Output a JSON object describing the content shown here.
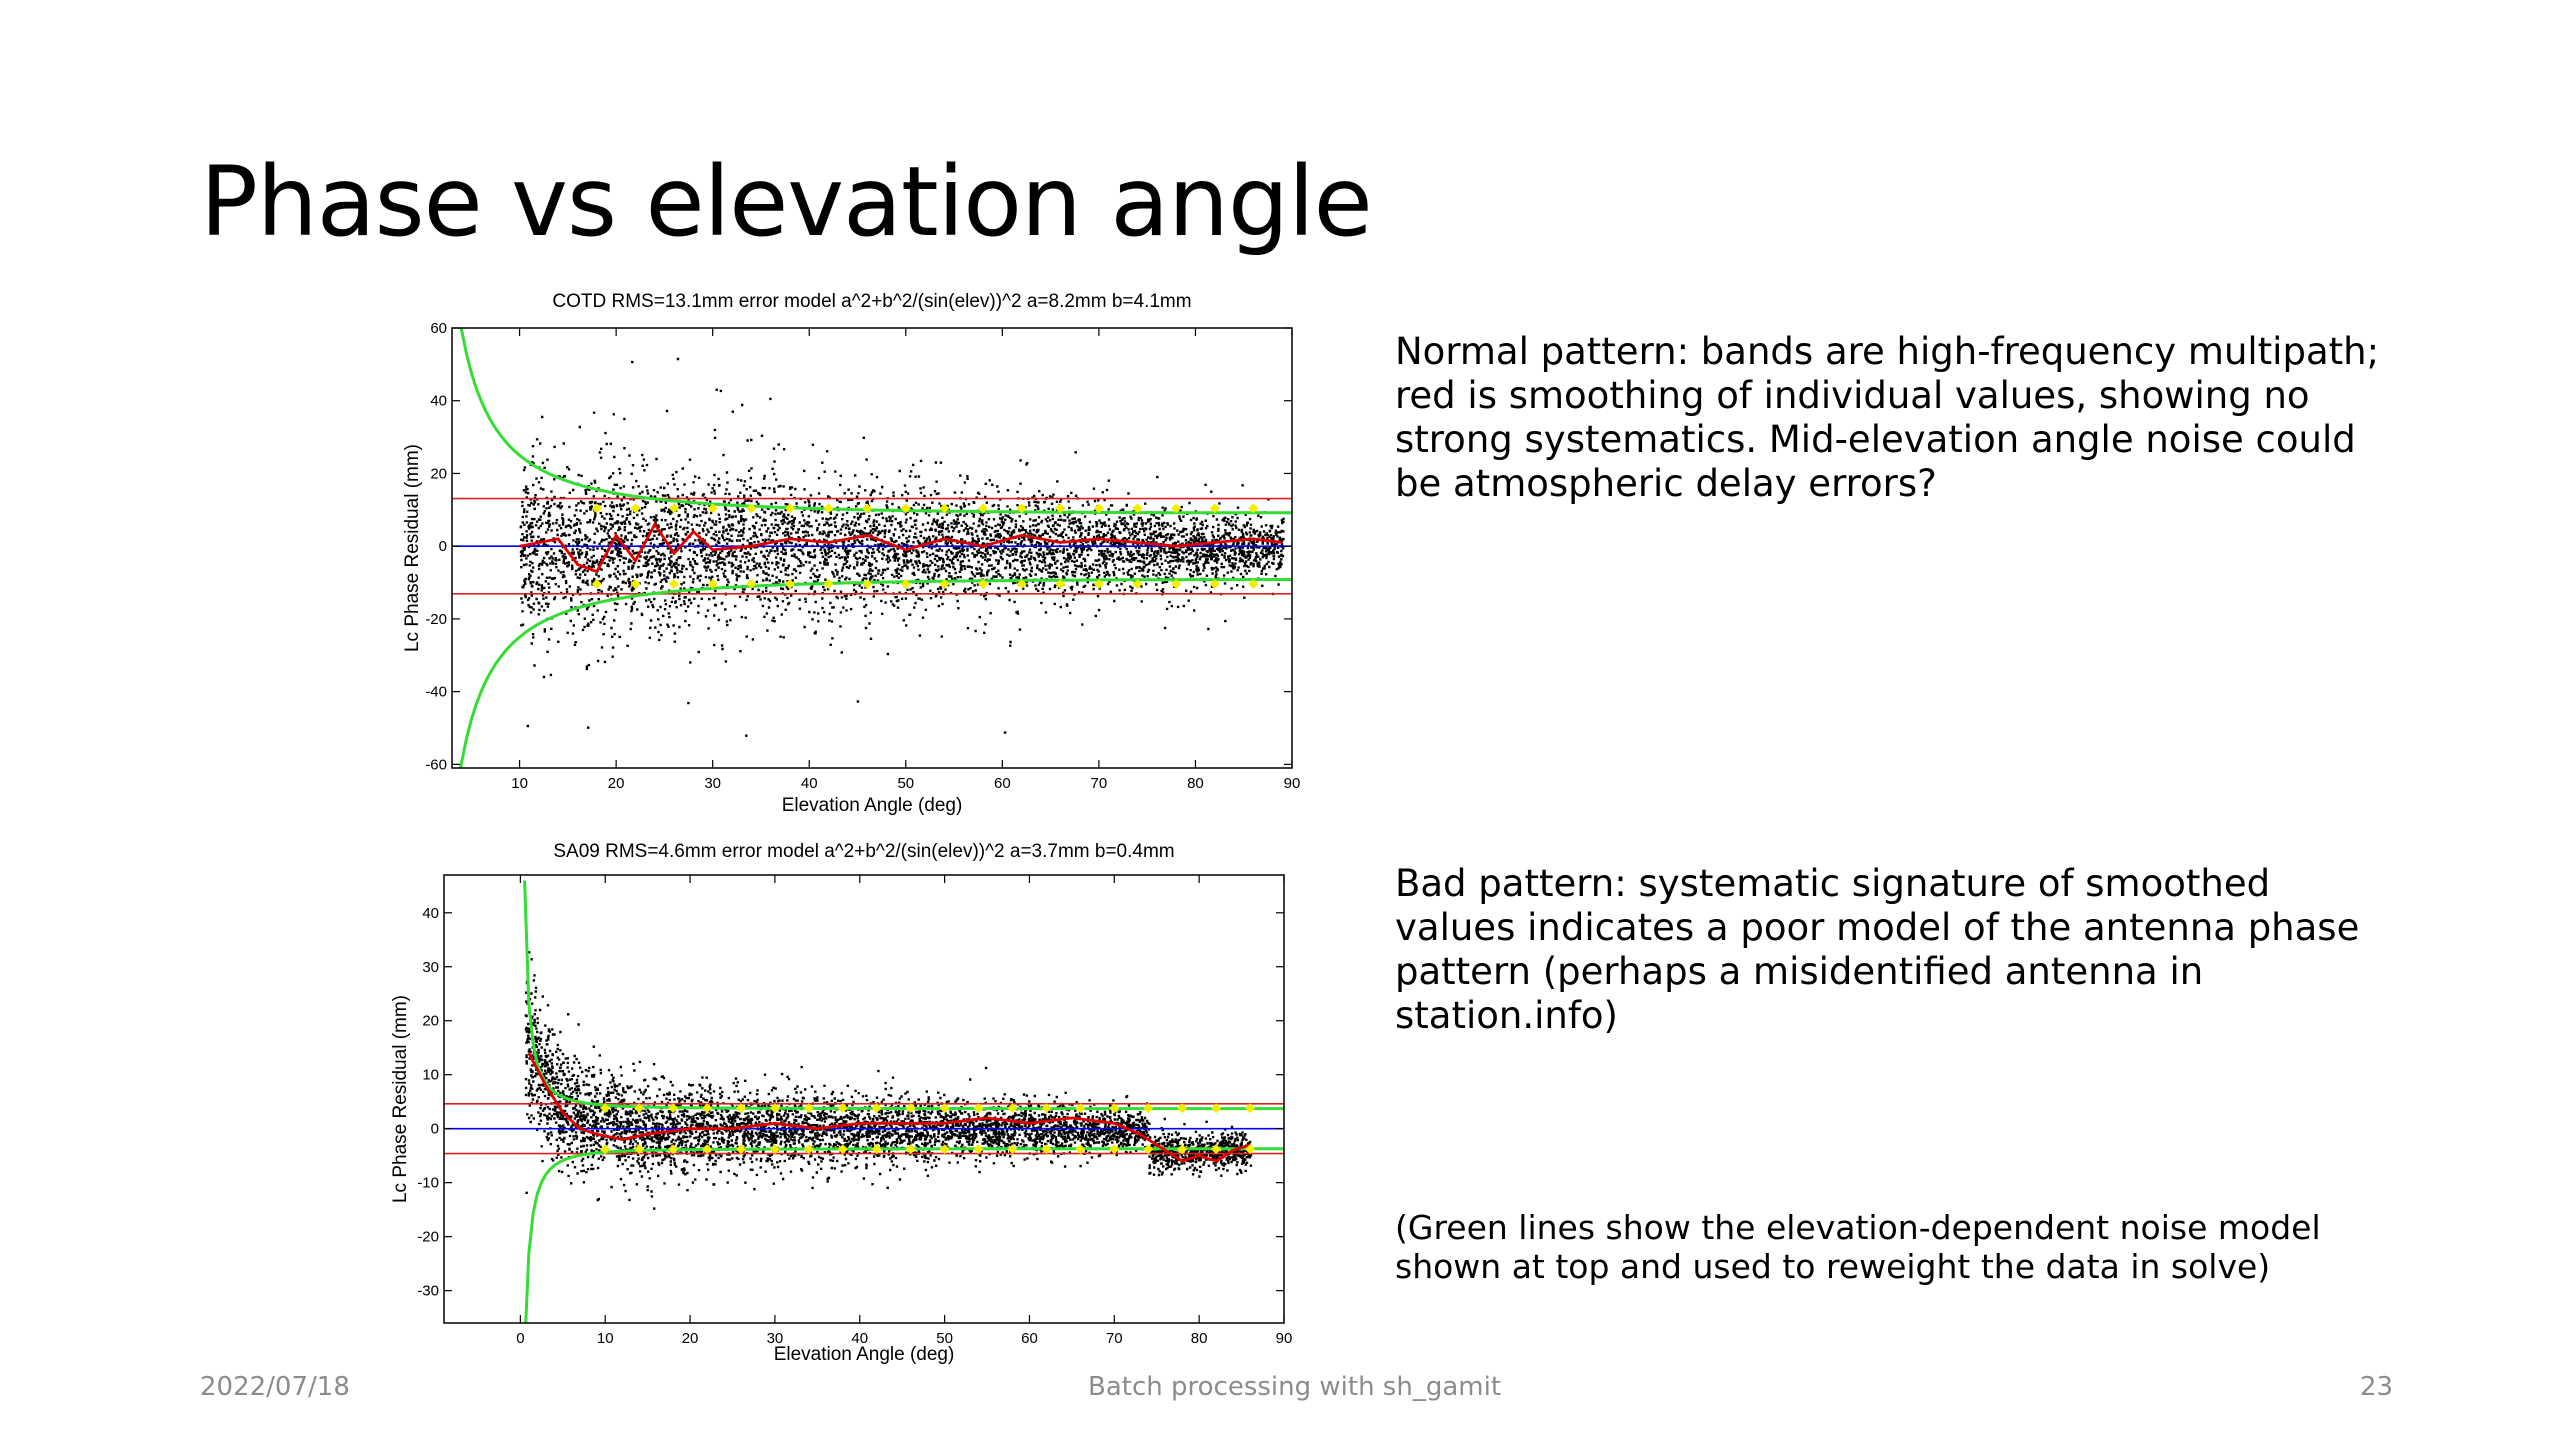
{
  "slide": {
    "title": "Phase vs elevation angle",
    "note_normal": "Normal  pattern: bands are high-frequency multipath; red is smoothing of individual values, showing no strong systematics. Mid-elevation angle noise could be atmospheric delay errors?",
    "note_bad": "Bad pattern: systematic signature of smoothed values indicates a poor model of the antenna phase pattern (perhaps a misidentified antenna in station.info)",
    "note_green": "(Green lines show the elevation-dependent noise model shown at top and used to reweight the data in solve)"
  },
  "footer": {
    "date": "2022/07/18",
    "center": "Batch processing with sh_gamit",
    "page": "23"
  },
  "colors": {
    "points": "#000000",
    "smoothed": "#e00000",
    "rms": "#e02020",
    "zero": "#0000ff",
    "noise_model": "#33dd33",
    "bin_markers": "#f2ee00"
  },
  "chart_data": [
    {
      "type": "scatter",
      "id": "top",
      "title": "COTD RMS=13.1mm error model a^2+b^2/(sin(elev))^2 a=8.2mm b=4.1mm",
      "xlabel": "Elevation Angle (deg)",
      "ylabel": "Lc Phase Residual (mm)",
      "xlim": [
        3,
        90
      ],
      "ylim": [
        -61,
        60
      ],
      "xticks": [
        10,
        20,
        30,
        40,
        50,
        60,
        70,
        80,
        90
      ],
      "yticks": [
        -60,
        -40,
        -20,
        0,
        20,
        40,
        60
      ],
      "ytick_labels": [
        "-60",
        "-40",
        "-20",
        "0",
        "20",
        "40",
        "60"
      ],
      "grid": false,
      "rms": 13.1,
      "model": {
        "a": 8.2,
        "b": 4.1
      },
      "points": {
        "count": 5200,
        "x_range": [
          10,
          89
        ],
        "spread_low_elev": 19,
        "spread_high_elev": 7,
        "description": "dense black point cloud"
      },
      "smoothed": {
        "x": [
          10,
          14,
          16,
          18,
          20,
          22,
          24,
          26,
          28,
          30,
          34,
          38,
          42,
          46,
          50,
          54,
          58,
          62,
          66,
          70,
          74,
          78,
          82,
          86,
          89
        ],
        "y": [
          0,
          2,
          -5,
          -7,
          3,
          -4,
          6,
          -2,
          4,
          -1,
          0,
          2,
          1,
          3,
          -1,
          2,
          0,
          3,
          1,
          2,
          1,
          0,
          1,
          2,
          1
        ]
      },
      "bin_markers_y": [
        10.4,
        -10.4
      ],
      "bin_markers_x": [
        18,
        22,
        26,
        30,
        34,
        38,
        42,
        46,
        50,
        54,
        58,
        62,
        66,
        70,
        74,
        78,
        82,
        86
      ]
    },
    {
      "type": "scatter",
      "id": "bottom",
      "title": "SA09 RMS=4.6mm error model a^2+b^2/(sin(elev))^2 a=3.7mm b=0.4mm",
      "xlabel": "Elevation Angle (deg)",
      "ylabel": "Lc Phase Residual (mm)",
      "xlim": [
        -9,
        90
      ],
      "ylim": [
        -36,
        47
      ],
      "xticks": [
        0,
        10,
        20,
        30,
        40,
        50,
        60,
        70,
        80,
        90
      ],
      "yticks": [
        -30,
        -20,
        -10,
        0,
        10,
        20,
        30,
        40
      ],
      "ytick_labels": [
        "-30",
        "-20",
        "-10",
        "0",
        "10",
        "20",
        "30",
        "40"
      ],
      "grid": false,
      "rms": 4.6,
      "model": {
        "a": 3.7,
        "b": 0.4
      },
      "points": {
        "count": 5200,
        "x_range": [
          0.5,
          86
        ],
        "spread_low_elev": 10,
        "spread_high_elev": 3,
        "description": "dense black point cloud"
      },
      "smoothed": {
        "x": [
          1,
          3,
          5,
          7,
          9,
          12,
          15,
          20,
          25,
          30,
          35,
          40,
          45,
          50,
          55,
          60,
          65,
          70,
          73,
          76,
          78,
          80,
          82,
          84,
          86
        ],
        "y": [
          14,
          8,
          3,
          0,
          -1,
          -2,
          -1,
          0,
          0,
          1,
          0,
          1,
          1,
          1,
          2,
          1,
          2,
          1,
          -1,
          -4,
          -6,
          -5,
          -6,
          -4,
          -3
        ]
      },
      "bin_markers_y": [
        3.8,
        -3.8
      ],
      "bin_markers_x": [
        10,
        14,
        18,
        22,
        26,
        30,
        34,
        38,
        42,
        46,
        50,
        54,
        58,
        62,
        66,
        70,
        74,
        78,
        82,
        86
      ]
    }
  ]
}
